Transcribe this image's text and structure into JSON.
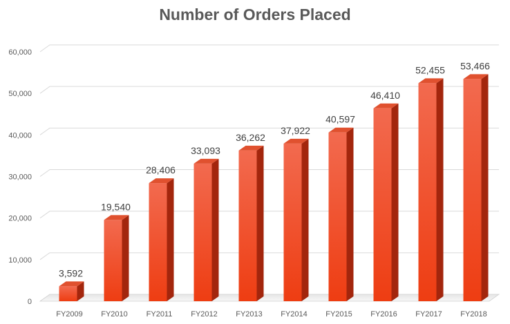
{
  "chart_data": {
    "type": "bar",
    "title": "Number of Orders Placed",
    "categories": [
      "FY2009",
      "FY2010",
      "FY2011",
      "FY2012",
      "FY2013",
      "FY2014",
      "FY2015",
      "FY2016",
      "FY2017",
      "FY2018"
    ],
    "values": [
      3592,
      19540,
      28406,
      33093,
      36262,
      37922,
      40597,
      46410,
      52455,
      53466
    ],
    "data_labels": [
      "3,592",
      "19,540",
      "28,406",
      "33,093",
      "36,262",
      "37,922",
      "40,597",
      "46,410",
      "52,455",
      "53,466"
    ],
    "yticks": [
      "0",
      "10,000",
      "20,000",
      "30,000",
      "40,000",
      "50,000",
      "60,000"
    ],
    "ylim": [
      0,
      60000
    ],
    "grid": true,
    "legend": "none",
    "colors": {
      "bar_front": "#f0421b",
      "bar_front_light": "#f26a4f",
      "bar_side": "#a3260d",
      "bar_top": "#e0512f",
      "grid": "#d9d9d9"
    }
  }
}
